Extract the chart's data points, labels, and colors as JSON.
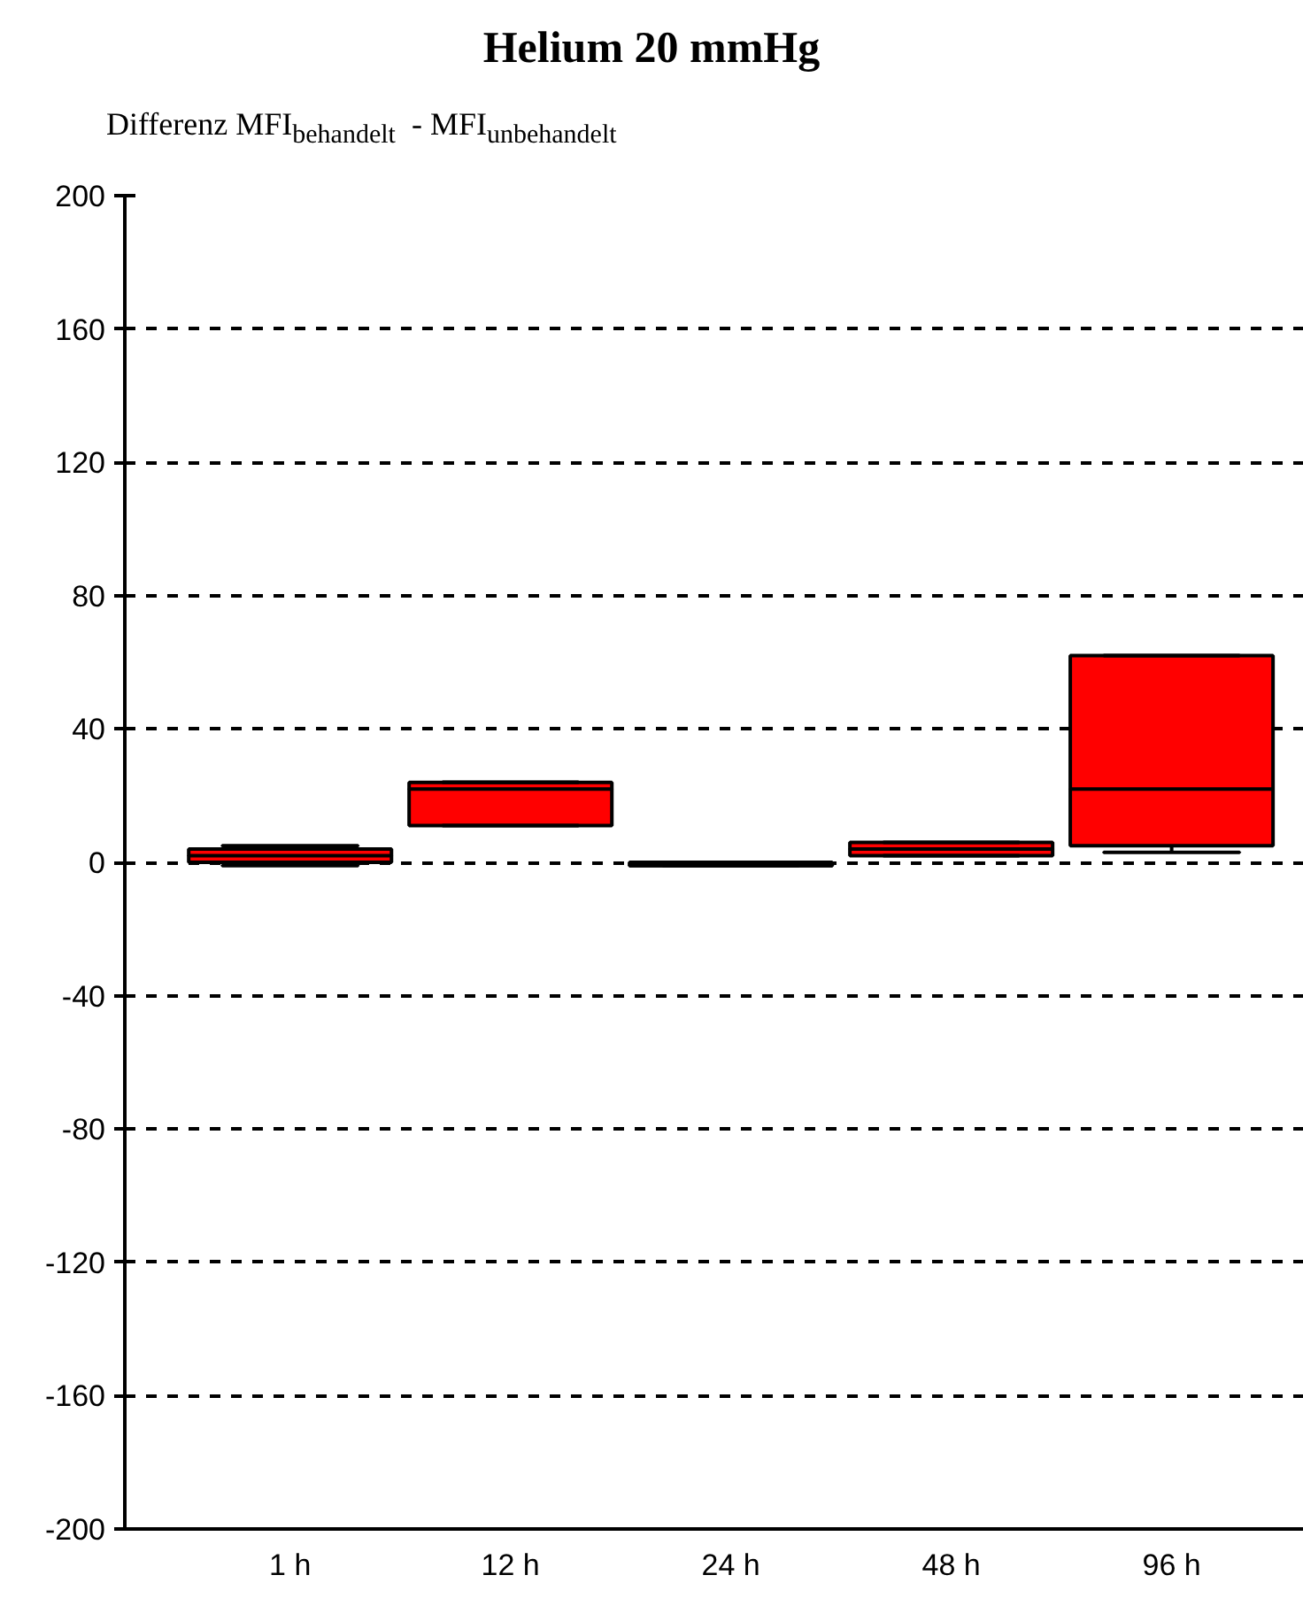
{
  "chart_data": {
    "type": "box",
    "title": "Helium 20 mmHg",
    "ylabel": "Differenz MFI$_{behandelt}$  - MFI$_{unbehandelt}$",
    "categories": [
      "1 h",
      "12 h",
      "24 h",
      "48 h",
      "96 h"
    ],
    "series": [
      {
        "color": "#ff0000",
        "boxes": [
          {
            "low": -1,
            "q1": 0,
            "median": 2,
            "q3": 4,
            "high": 5
          },
          {
            "low": 11,
            "q1": 11,
            "median": 22,
            "q3": 24,
            "high": 24
          },
          {
            "low": -1,
            "q1": -1,
            "median": -1,
            "q3": 0,
            "high": 0
          },
          {
            "low": 2,
            "q1": 2,
            "median": 4,
            "q3": 6,
            "high": 6
          },
          {
            "low": 3,
            "q1": 5,
            "median": 22,
            "q3": 62,
            "high": 62
          }
        ]
      }
    ],
    "ylim": [
      -200,
      200
    ],
    "yticks": [
      -200,
      -160,
      -120,
      -80,
      -40,
      0,
      40,
      80,
      120,
      160,
      200
    ],
    "grid": "y"
  }
}
